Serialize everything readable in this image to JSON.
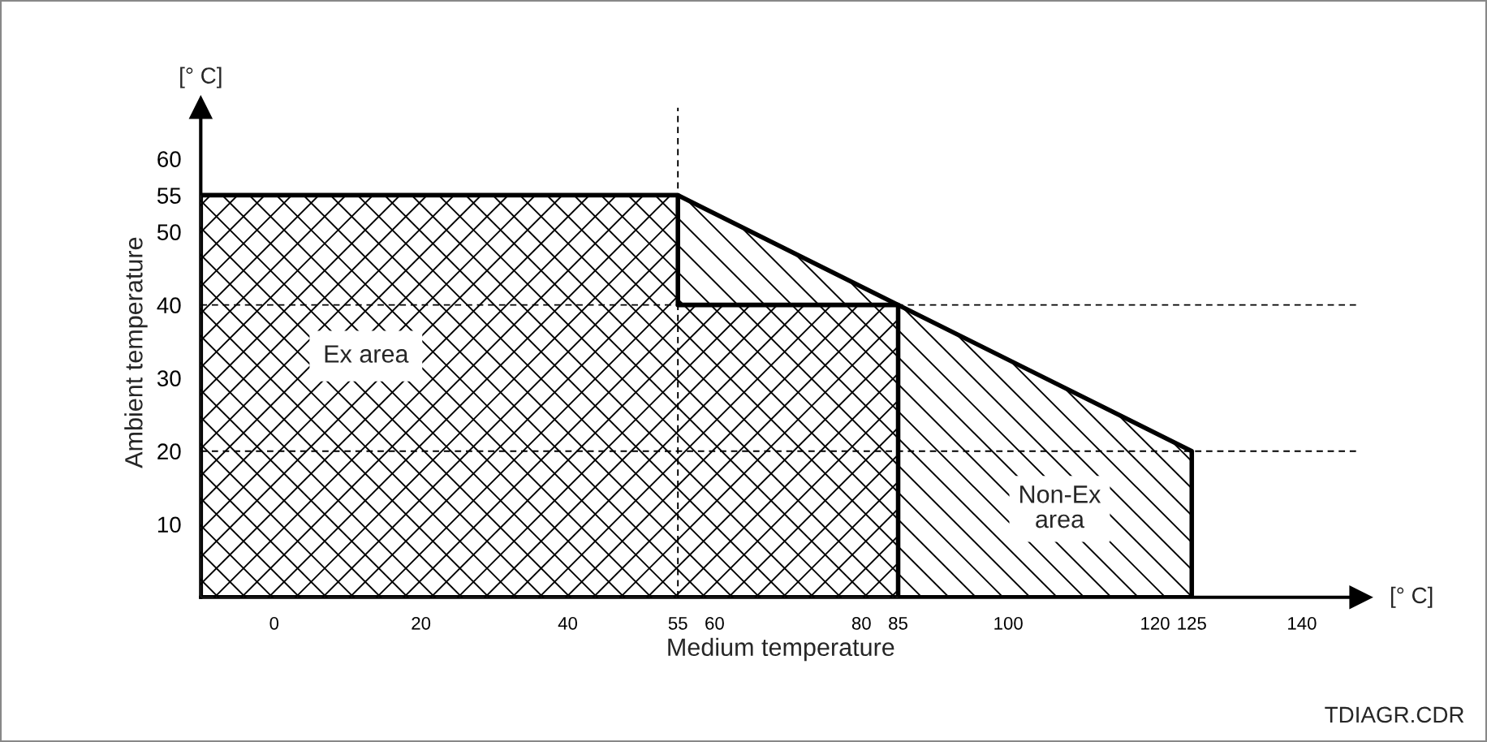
{
  "chart_data": {
    "type": "area",
    "xlabel": "Medium temperature",
    "ylabel": "Ambient temperature",
    "annotations": [
      "[° C]",
      "[° C]",
      "TDIAGR.CDR"
    ],
    "series": [
      {
        "name": "Non-Ex\narea",
        "color": "#000000",
        "x": [
          -10,
          55,
          125
        ],
        "values": [
          55,
          55,
          20
        ]
      },
      {
        "name": "Ex area",
        "color": "#000000",
        "x": [
          -10,
          55,
          55,
          85
        ],
        "values": [
          55,
          55,
          40,
          40
        ]
      }
    ],
    "xlim": [
      -10,
      148
    ],
    "ylim": [
      0,
      67
    ],
    "xticks": [
      0,
      20,
      40,
      55,
      60,
      80,
      85,
      100,
      120,
      125,
      140
    ],
    "yticks": [
      10,
      20,
      30,
      40,
      50,
      55,
      60
    ],
    "ref_lines": [
      {
        "axis": "y",
        "value": 40,
        "label": null,
        "color": "#000000",
        "line_style": "dashed"
      },
      {
        "axis": "y",
        "value": 20,
        "label": null,
        "color": "#000000",
        "line_style": "dashed"
      },
      {
        "axis": "x",
        "value": 55,
        "label": null,
        "color": "#000000",
        "line_style": "dashed"
      }
    ],
    "grid": false,
    "legend": false
  }
}
